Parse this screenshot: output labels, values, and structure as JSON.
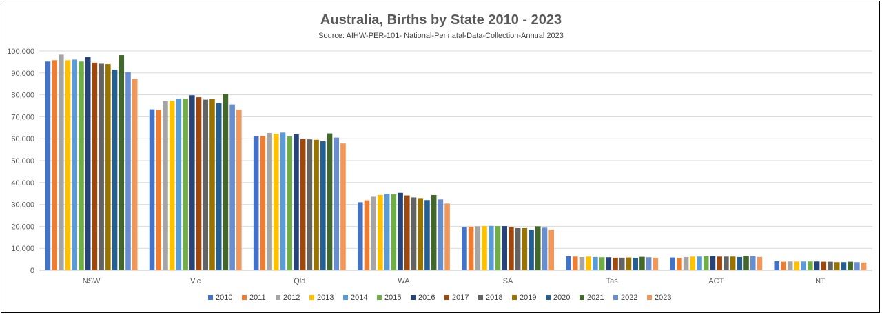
{
  "chart_data": {
    "type": "bar",
    "title": "Australia, Births by State 2010 - 2023",
    "subtitle": "Source: AIHW-PER-101- National-Perinatal-Data-Collection-Annual 2023",
    "xlabel": "",
    "ylabel": "",
    "ylim": [
      0,
      100000
    ],
    "yticks": [
      0,
      10000,
      20000,
      30000,
      40000,
      50000,
      60000,
      70000,
      80000,
      90000,
      100000
    ],
    "ytick_labels": [
      "0",
      "10,000",
      "20,000",
      "30,000",
      "40,000",
      "50,000",
      "60,000",
      "70,000",
      "80,000",
      "90,000",
      "100,000"
    ],
    "grid": true,
    "legend_position": "bottom",
    "categories": [
      "NSW",
      "Vic",
      "Qld",
      "WA",
      "SA",
      "Tas",
      "ACT",
      "NT"
    ],
    "series": [
      {
        "name": "2010",
        "color": "#4472C4",
        "values": [
          95200,
          73400,
          61100,
          31000,
          19600,
          6300,
          5800,
          4100
        ]
      },
      {
        "name": "2011",
        "color": "#ED7D31",
        "values": [
          95800,
          73100,
          61200,
          31900,
          19800,
          6200,
          5600,
          3900
        ]
      },
      {
        "name": "2012",
        "color": "#A5A5A5",
        "values": [
          98300,
          77200,
          62600,
          33500,
          20000,
          6000,
          6000,
          4000
        ]
      },
      {
        "name": "2013",
        "color": "#FFC000",
        "values": [
          95800,
          77300,
          62200,
          34300,
          20100,
          6200,
          6200,
          4000
        ]
      },
      {
        "name": "2014",
        "color": "#5B9BD5",
        "values": [
          96100,
          78200,
          62800,
          34800,
          20200,
          6000,
          6200,
          4000
        ]
      },
      {
        "name": "2015",
        "color": "#70AD47",
        "values": [
          95200,
          78200,
          61000,
          34600,
          20100,
          5900,
          6300,
          4000
        ]
      },
      {
        "name": "2016",
        "color": "#264478",
        "values": [
          97300,
          79800,
          62000,
          35300,
          20100,
          5900,
          6400,
          4000
        ]
      },
      {
        "name": "2017",
        "color": "#9E480E",
        "values": [
          94700,
          78900,
          59800,
          34100,
          19600,
          5700,
          6200,
          3900
        ]
      },
      {
        "name": "2018",
        "color": "#636363",
        "values": [
          94200,
          77800,
          59700,
          33200,
          19200,
          5700,
          6200,
          3900
        ]
      },
      {
        "name": "2019",
        "color": "#997300",
        "values": [
          94000,
          78000,
          59500,
          32900,
          19200,
          5800,
          6200,
          3700
        ]
      },
      {
        "name": "2020",
        "color": "#255E91",
        "values": [
          91500,
          76200,
          58800,
          32000,
          18500,
          5600,
          6000,
          3700
        ]
      },
      {
        "name": "2021",
        "color": "#43682B",
        "values": [
          98100,
          80500,
          62400,
          34300,
          20000,
          6100,
          6500,
          3900
        ]
      },
      {
        "name": "2022",
        "color": "#698ED0",
        "values": [
          90400,
          75600,
          60500,
          32300,
          19400,
          5900,
          6400,
          3700
        ]
      },
      {
        "name": "2023",
        "color": "#F1975A",
        "values": [
          87200,
          73200,
          57800,
          30400,
          18500,
          5700,
          6000,
          3500
        ]
      }
    ]
  }
}
